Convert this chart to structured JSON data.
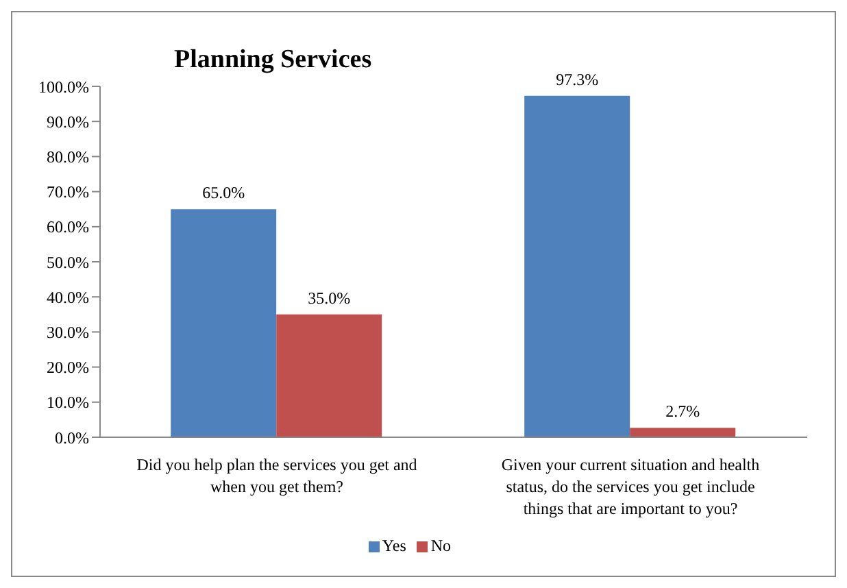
{
  "chart_data": {
    "type": "bar",
    "title": "Planning Services",
    "categories": [
      "Did you help plan the services you get and when you get them?",
      "Given your current situation and health status, do the services you get include things that are important to you?"
    ],
    "series": [
      {
        "name": "Yes",
        "color": "#4f81bd",
        "values": [
          65.0,
          97.3
        ],
        "value_labels": [
          "65.0%",
          "97.3%"
        ]
      },
      {
        "name": "No",
        "color": "#c0504d",
        "values": [
          35.0,
          2.7
        ],
        "value_labels": [
          "35.0%",
          "2.7%"
        ]
      }
    ],
    "ylim": [
      0,
      100
    ],
    "yticks": [
      {
        "value": 0,
        "label": "0.0%"
      },
      {
        "value": 10,
        "label": "10.0%"
      },
      {
        "value": 20,
        "label": "20.0%"
      },
      {
        "value": 30,
        "label": "30.0%"
      },
      {
        "value": 40,
        "label": "40.0%"
      },
      {
        "value": 50,
        "label": "50.0%"
      },
      {
        "value": 60,
        "label": "60.0%"
      },
      {
        "value": 70,
        "label": "70.0%"
      },
      {
        "value": 80,
        "label": "80.0%"
      },
      {
        "value": 90,
        "label": "90.0%"
      },
      {
        "value": 100,
        "label": "100.0%"
      }
    ],
    "grid": false,
    "legend": "bottom"
  }
}
